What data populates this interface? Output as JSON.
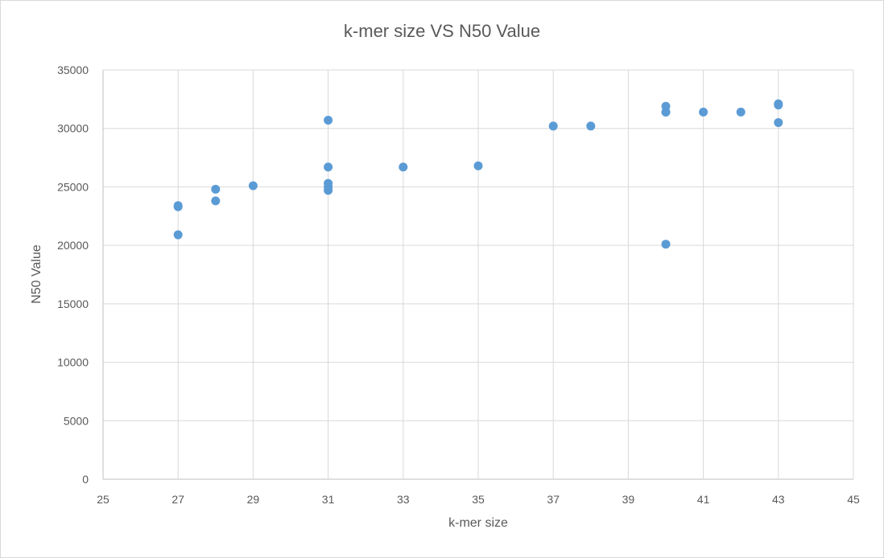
{
  "chart_data": {
    "type": "scatter",
    "title": "k-mer size VS N50 Value",
    "xlabel": "k-mer size",
    "ylabel": "N50 Value",
    "xlim": [
      25,
      45
    ],
    "ylim": [
      0,
      35000
    ],
    "xticks": [
      25,
      27,
      29,
      31,
      33,
      35,
      37,
      39,
      41,
      43,
      45
    ],
    "yticks": [
      0,
      5000,
      10000,
      15000,
      20000,
      25000,
      30000,
      35000
    ],
    "grid": true,
    "legend": "none",
    "series": [
      {
        "color": "#5b9bd5",
        "points": [
          [
            27,
            23400
          ],
          [
            27,
            23300
          ],
          [
            27,
            20900
          ],
          [
            28,
            24800
          ],
          [
            28,
            23800
          ],
          [
            29,
            25100
          ],
          [
            31,
            30700
          ],
          [
            31,
            26700
          ],
          [
            31,
            25300
          ],
          [
            31,
            25000
          ],
          [
            31,
            24700
          ],
          [
            33,
            26700
          ],
          [
            35,
            26800
          ],
          [
            37,
            30200
          ],
          [
            38,
            30200
          ],
          [
            40,
            31900
          ],
          [
            40,
            31400
          ],
          [
            40,
            31400
          ],
          [
            40,
            20100
          ],
          [
            41,
            31400
          ],
          [
            42,
            31400
          ],
          [
            43,
            32100
          ],
          [
            43,
            32000
          ],
          [
            43,
            30500
          ]
        ]
      }
    ]
  }
}
